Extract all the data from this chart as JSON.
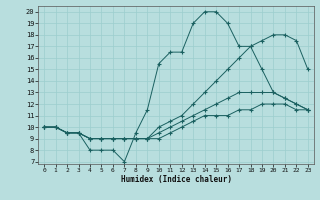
{
  "title": "",
  "xlabel": "Humidex (Indice chaleur)",
  "bg_color": "#b8dede",
  "grid_color": "#9ccece",
  "line_color": "#1a6060",
  "xlim": [
    -0.5,
    23.5
  ],
  "ylim": [
    6.8,
    20.5
  ],
  "xticks": [
    0,
    1,
    2,
    3,
    4,
    5,
    6,
    7,
    8,
    9,
    10,
    11,
    12,
    13,
    14,
    15,
    16,
    17,
    18,
    19,
    20,
    21,
    22,
    23
  ],
  "yticks": [
    7,
    8,
    9,
    10,
    11,
    12,
    13,
    14,
    15,
    16,
    17,
    18,
    19,
    20
  ],
  "line1_x": [
    0,
    1,
    2,
    3,
    4,
    5,
    6,
    7,
    8,
    9,
    10,
    11,
    12,
    13,
    14,
    15,
    16,
    17,
    18,
    19,
    20,
    21,
    22,
    23
  ],
  "line1_y": [
    10,
    10,
    9.5,
    9.5,
    8,
    8,
    8,
    7,
    9.5,
    11.5,
    15.5,
    16.5,
    16.5,
    19,
    20,
    20,
    19,
    17,
    17,
    15,
    13,
    12.5,
    12,
    11.5
  ],
  "line2_x": [
    0,
    1,
    2,
    3,
    4,
    5,
    6,
    7,
    8,
    9,
    10,
    11,
    12,
    13,
    14,
    15,
    16,
    17,
    18,
    19,
    20,
    21,
    22,
    23
  ],
  "line2_y": [
    10,
    10,
    9.5,
    9.5,
    9,
    9,
    9,
    9,
    9,
    9,
    10,
    10.5,
    11,
    12,
    13,
    14,
    15,
    16,
    17,
    17.5,
    18,
    18,
    17.5,
    15
  ],
  "line3_x": [
    0,
    1,
    2,
    3,
    4,
    5,
    6,
    7,
    8,
    9,
    10,
    11,
    12,
    13,
    14,
    15,
    16,
    17,
    18,
    19,
    20,
    21,
    22,
    23
  ],
  "line3_y": [
    10,
    10,
    9.5,
    9.5,
    9,
    9,
    9,
    9,
    9,
    9,
    9.5,
    10,
    10.5,
    11,
    11.5,
    12,
    12.5,
    13,
    13,
    13,
    13,
    12.5,
    12,
    11.5
  ],
  "line4_x": [
    0,
    1,
    2,
    3,
    4,
    5,
    6,
    7,
    8,
    9,
    10,
    11,
    12,
    13,
    14,
    15,
    16,
    17,
    18,
    19,
    20,
    21,
    22,
    23
  ],
  "line4_y": [
    10,
    10,
    9.5,
    9.5,
    9,
    9,
    9,
    9,
    9,
    9,
    9,
    9.5,
    10,
    10.5,
    11,
    11,
    11,
    11.5,
    11.5,
    12,
    12,
    12,
    11.5,
    11.5
  ]
}
